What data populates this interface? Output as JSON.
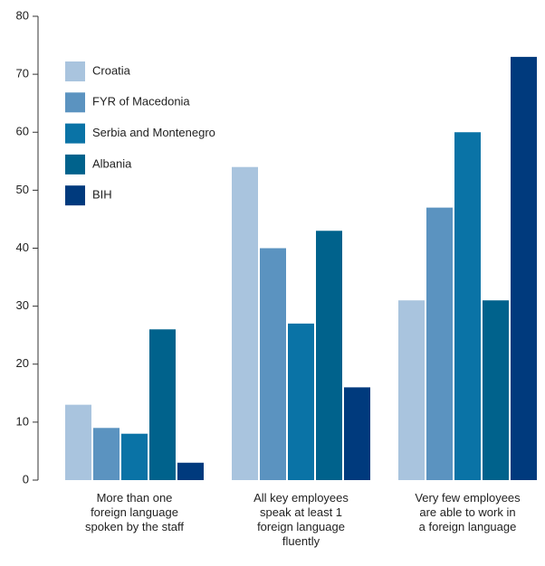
{
  "chart_data": {
    "type": "bar",
    "categories": [
      "More than one\nforeign language\nspoken by the staff",
      "All key employees\nspeak at least 1\nforeign language\nfluently",
      "Very few employees\nare able to work in\na foreign language"
    ],
    "series": [
      {
        "name": "Croatia",
        "color": "#a9c4de",
        "values": [
          13,
          54,
          31
        ]
      },
      {
        "name": "FYR of Macedonia",
        "color": "#5b93c0",
        "values": [
          9,
          40,
          47
        ]
      },
      {
        "name": "Serbia and Montenegro",
        "color": "#0a73a6",
        "values": [
          8,
          27,
          60
        ]
      },
      {
        "name": "Albania",
        "color": "#00628c",
        "values": [
          26,
          43,
          31
        ]
      },
      {
        "name": "BIH",
        "color": "#003a7d",
        "values": [
          3,
          16,
          73
        ]
      }
    ],
    "ylim": [
      0,
      80
    ],
    "yticks": [
      0,
      10,
      20,
      30,
      40,
      50,
      60,
      70,
      80
    ],
    "legend": "upper left"
  }
}
